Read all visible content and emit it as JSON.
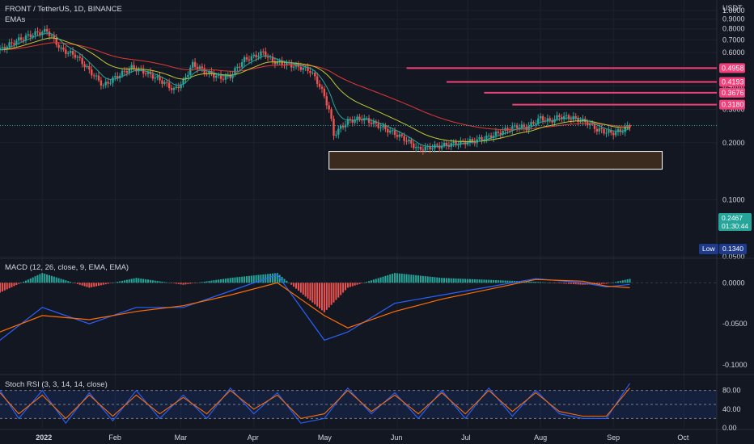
{
  "header": {
    "symbol_line": "FRONT / TetherUS, 1D, BINANCE",
    "indicator": "EMAs"
  },
  "currency": "USDT",
  "price_axis": {
    "labels": [
      "1.0000",
      "0.9000",
      "0.8000",
      "0.7000",
      "0.6000",
      "0.5000",
      "0.4000",
      "0.3000",
      "0.2000",
      "0.1000",
      "0.0500"
    ],
    "values": [
      1.0,
      0.9,
      0.8,
      0.7,
      0.6,
      0.5,
      0.4,
      0.3,
      0.2,
      0.1,
      0.05
    ]
  },
  "levels": [
    {
      "label": "0.4958",
      "value": 0.4958
    },
    {
      "label": "0.4193",
      "value": 0.4193
    },
    {
      "label": "0.3676",
      "value": 0.3676
    },
    {
      "label": "0.3180",
      "value": 0.318
    }
  ],
  "current": {
    "price": "0.2467",
    "countdown": "01:30:44",
    "color": "#26a69a"
  },
  "low": {
    "label": "Low",
    "value": "0.1340"
  },
  "macd": {
    "title": "MACD (12, 26, close, 9, EMA, EMA)",
    "axis_labels": [
      "0.0000",
      "-0.0500",
      "-0.1000"
    ],
    "axis_values": [
      0,
      -0.05,
      -0.1
    ]
  },
  "stoch": {
    "title": "Stoch RSI (3, 3, 14, 14, close)",
    "axis_labels": [
      "80.00",
      "40.00",
      "0.00"
    ],
    "axis_values": [
      80,
      40,
      0
    ]
  },
  "time_axis": {
    "labels": [
      "2022",
      "Feb",
      "Mar",
      "Apr",
      "May",
      "Jun",
      "Jul",
      "Aug",
      "Sep",
      "Oct"
    ],
    "days": [
      0,
      31,
      59,
      90,
      120,
      151,
      181,
      212,
      243,
      273
    ]
  },
  "colors": {
    "up": "#26a69a",
    "down": "#ef5350",
    "level": "#f23f7a",
    "ema_fast": "#c0ca33",
    "ema_slow": "#e53935",
    "ema_short": "#26a69a",
    "macd": "#2962ff",
    "signal": "#ff6d00",
    "stoch_k": "#2962ff",
    "stoch_d": "#ff6d00",
    "zone_fill": "#3b2a1e"
  },
  "chart_data": [
    {
      "type": "candlestick",
      "title": "FRONT / TetherUS, 1D, BINANCE",
      "scale": "log",
      "ylim": [
        0.05,
        1.05
      ],
      "x_range_days": [
        -18,
        287
      ],
      "candles_day_close": [
        [
          -18,
          0.62
        ],
        [
          -10,
          0.7
        ],
        [
          -4,
          0.75
        ],
        [
          2,
          0.78
        ],
        [
          8,
          0.62
        ],
        [
          14,
          0.58
        ],
        [
          20,
          0.48
        ],
        [
          26,
          0.4
        ],
        [
          32,
          0.45
        ],
        [
          38,
          0.5
        ],
        [
          44,
          0.47
        ],
        [
          50,
          0.43
        ],
        [
          56,
          0.38
        ],
        [
          60,
          0.42
        ],
        [
          64,
          0.52
        ],
        [
          70,
          0.47
        ],
        [
          76,
          0.44
        ],
        [
          80,
          0.45
        ],
        [
          86,
          0.55
        ],
        [
          90,
          0.57
        ],
        [
          94,
          0.6
        ],
        [
          98,
          0.54
        ],
        [
          104,
          0.52
        ],
        [
          110,
          0.5
        ],
        [
          114,
          0.48
        ],
        [
          118,
          0.4
        ],
        [
          122,
          0.3
        ],
        [
          124,
          0.22
        ],
        [
          130,
          0.26
        ],
        [
          136,
          0.27
        ],
        [
          142,
          0.25
        ],
        [
          148,
          0.23
        ],
        [
          154,
          0.21
        ],
        [
          160,
          0.185
        ],
        [
          166,
          0.19
        ],
        [
          172,
          0.195
        ],
        [
          178,
          0.2
        ],
        [
          184,
          0.205
        ],
        [
          190,
          0.215
        ],
        [
          196,
          0.23
        ],
        [
          202,
          0.245
        ],
        [
          206,
          0.24
        ],
        [
          212,
          0.27
        ],
        [
          216,
          0.26
        ],
        [
          220,
          0.275
        ],
        [
          226,
          0.27
        ],
        [
          232,
          0.255
        ],
        [
          236,
          0.235
        ],
        [
          242,
          0.225
        ],
        [
          246,
          0.23
        ],
        [
          250,
          0.2467
        ]
      ],
      "ema_short_note": "",
      "annotations": {
        "levels": [
          0.4958,
          0.4193,
          0.3676,
          0.318
        ],
        "support_zone": [
          0.145,
          0.18
        ],
        "low": 0.134,
        "last": 0.2467
      }
    },
    {
      "type": "line",
      "title": "MACD (12, 26, close, 9, EMA, EMA)",
      "ylim": [
        -0.11,
        0.02
      ],
      "series": [
        {
          "name": "",
          "x": [
            -18,
            0,
            20,
            40,
            60,
            80,
            100,
            120,
            130,
            150,
            170,
            190,
            210,
            230,
            240,
            250
          ],
          "values": [
            -0.07,
            -0.03,
            -0.05,
            -0.03,
            -0.03,
            -0.01,
            0.01,
            -0.07,
            -0.06,
            -0.025,
            -0.015,
            -0.005,
            0.005,
            0,
            -0.005,
            -0.002
          ]
        },
        {
          "name": "",
          "x": [
            -18,
            0,
            20,
            40,
            60,
            80,
            100,
            120,
            130,
            150,
            170,
            190,
            210,
            230,
            240,
            250
          ],
          "values": [
            -0.06,
            -0.04,
            -0.045,
            -0.035,
            -0.028,
            -0.015,
            0.0,
            -0.04,
            -0.055,
            -0.035,
            -0.02,
            -0.008,
            0.004,
            0.002,
            -0.004,
            -0.006
          ]
        }
      ]
    },
    {
      "type": "line",
      "title": "Stoch RSI (3, 3, 14, 14, close)",
      "ylim": [
        0,
        100
      ],
      "series": [
        {
          "name": "",
          "x": [
            -18,
            -10,
            0,
            10,
            20,
            30,
            40,
            50,
            60,
            70,
            80,
            90,
            100,
            110,
            120,
            130,
            140,
            150,
            160,
            170,
            180,
            190,
            200,
            210,
            220,
            230,
            240,
            250
          ],
          "values": [
            80,
            20,
            80,
            10,
            75,
            15,
            80,
            20,
            70,
            20,
            85,
            30,
            75,
            10,
            20,
            85,
            30,
            75,
            20,
            80,
            20,
            85,
            25,
            80,
            30,
            20,
            20,
            95
          ]
        },
        {
          "name": "",
          "x": [
            -18,
            -10,
            0,
            10,
            20,
            30,
            40,
            50,
            60,
            70,
            80,
            90,
            100,
            110,
            120,
            130,
            140,
            150,
            160,
            170,
            180,
            190,
            200,
            210,
            220,
            230,
            240,
            250
          ],
          "values": [
            75,
            30,
            70,
            20,
            70,
            25,
            70,
            30,
            65,
            30,
            80,
            40,
            70,
            20,
            30,
            80,
            35,
            70,
            30,
            75,
            30,
            80,
            35,
            75,
            35,
            25,
            25,
            85
          ]
        }
      ]
    }
  ]
}
